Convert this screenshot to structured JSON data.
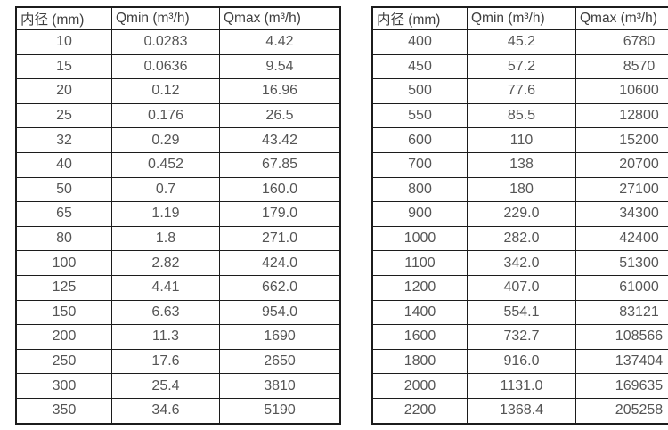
{
  "page": {
    "background_color": "#ffffff",
    "border_color": "#1c1c1c",
    "text_color": "#555555"
  },
  "chart_data": [
    {
      "type": "table",
      "headers": [
        "内径 (mm)",
        "Qmin (m³/h)",
        "Qmax (m³/h)"
      ],
      "rows": [
        [
          "10",
          "0.0283",
          "4.42"
        ],
        [
          "15",
          "0.0636",
          "9.54"
        ],
        [
          "20",
          "0.12",
          "16.96"
        ],
        [
          "25",
          "0.176",
          "26.5"
        ],
        [
          "32",
          "0.29",
          "43.42"
        ],
        [
          "40",
          "0.452",
          "67.85"
        ],
        [
          "50",
          "0.7",
          "160.0"
        ],
        [
          "65",
          "1.19",
          "179.0"
        ],
        [
          "80",
          "1.8",
          "271.0"
        ],
        [
          "100",
          "2.82",
          "424.0"
        ],
        [
          "125",
          "4.41",
          "662.0"
        ],
        [
          "150",
          "6.63",
          "954.0"
        ],
        [
          "200",
          "11.3",
          "1690"
        ],
        [
          "250",
          "17.6",
          "2650"
        ],
        [
          "300",
          "25.4",
          "3810"
        ],
        [
          "350",
          "34.6",
          "5190"
        ]
      ]
    },
    {
      "type": "table",
      "headers": [
        "内径 (mm)",
        "Qmin (m³/h)",
        "Qmax (m³/h)"
      ],
      "rows": [
        [
          "400",
          "45.2",
          "6780"
        ],
        [
          "450",
          "57.2",
          "8570"
        ],
        [
          "500",
          "77.6",
          "10600"
        ],
        [
          "550",
          "85.5",
          "12800"
        ],
        [
          "600",
          "110",
          "15200"
        ],
        [
          "700",
          "138",
          "20700"
        ],
        [
          "800",
          "180",
          "27100"
        ],
        [
          "900",
          "229.0",
          "34300"
        ],
        [
          "1000",
          "282.0",
          "42400"
        ],
        [
          "1100",
          "342.0",
          "51300"
        ],
        [
          "1200",
          "407.0",
          "61000"
        ],
        [
          "1400",
          "554.1",
          "83121"
        ],
        [
          "1600",
          "732.7",
          "108566"
        ],
        [
          "1800",
          "916.0",
          "137404"
        ],
        [
          "2000",
          "1131.0",
          "169635"
        ],
        [
          "2200",
          "1368.4",
          "205258"
        ]
      ]
    }
  ]
}
